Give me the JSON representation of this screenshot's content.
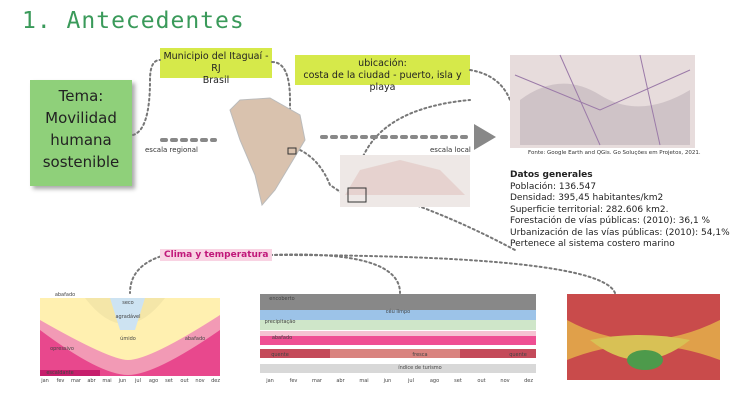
{
  "header": {
    "title": "1. Antecedentes"
  },
  "note": {
    "lines": [
      "Tema:",
      "Movilidad",
      "humana",
      "sostenible"
    ]
  },
  "labels": {
    "municipio": [
      "Municipio del Itaguaí - RJ",
      "Brasil"
    ],
    "ubicacion": [
      "ubicación:",
      "costa de la ciudad - puerto, isla y playa"
    ],
    "escala_regional": "escala regional",
    "escala_local": "escala local",
    "fuente": "Fonte: Google Earth and QGis. Go Soluções em Projetos, 2021."
  },
  "datos": {
    "title": "Datos generales",
    "items": [
      "Población: 136.547",
      "Densidad: 395,45 habitantes/km2",
      "Superficie territorial: 282.606 km2.",
      "Forestación de vías públicas: (2010): 36,1 %",
      "Urbanización de las vías públicas: (2010): 54,1%",
      "Pertenece al sistema costero marino"
    ]
  },
  "clima": {
    "title": "Clima y temperatura",
    "months": [
      "jan",
      "fev",
      "mar",
      "abr",
      "mai",
      "jun",
      "jul",
      "ago",
      "set",
      "out",
      "nov",
      "dez"
    ],
    "chart1_labels": [
      "abafado",
      "seco",
      "agradável",
      "úmido",
      "opressivo",
      "abafado",
      "escaldante"
    ],
    "chart2_labels": [
      "encoberto",
      "céu limpo",
      "precipitação",
      "abafado",
      "quente",
      "fresca",
      "quente",
      "índice de turismo"
    ]
  }
}
